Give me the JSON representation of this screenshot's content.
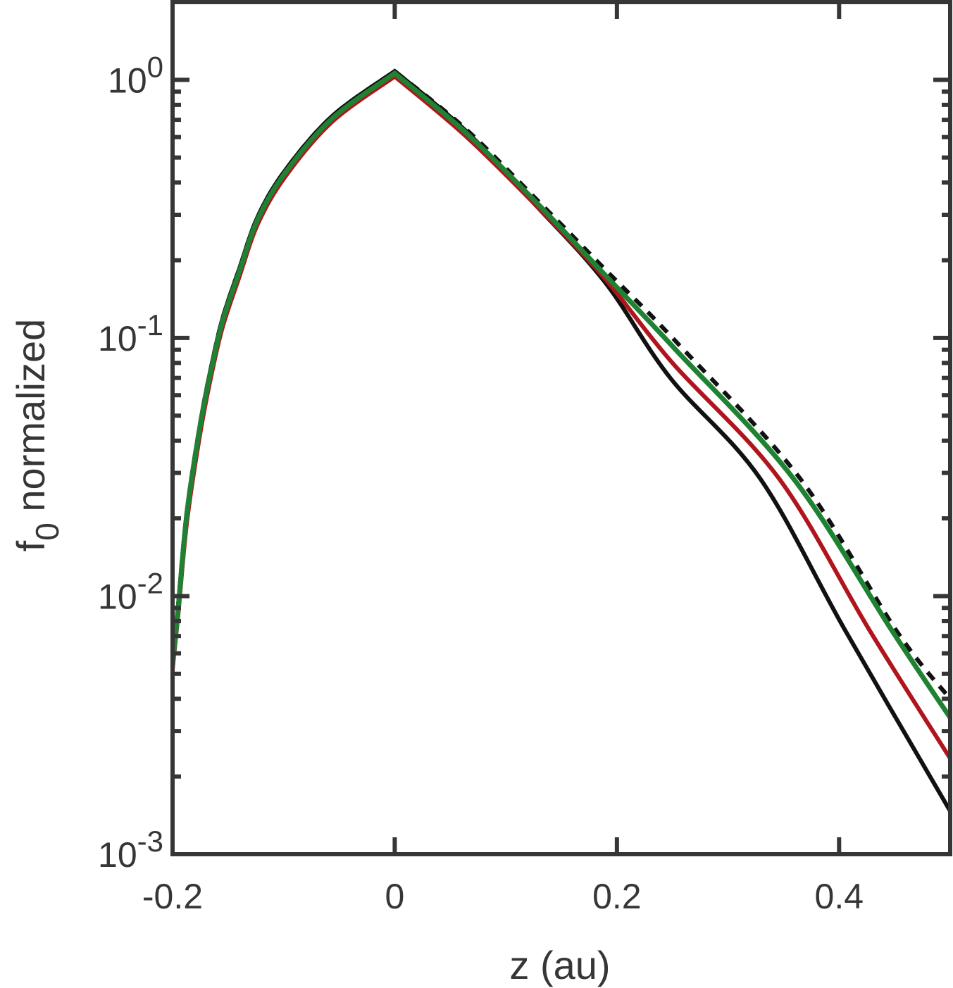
{
  "chart_data": {
    "type": "line",
    "title": "",
    "xlabel": "z (au)",
    "ylabel": "f0 normalized",
    "ylabel_parts": {
      "base": "f",
      "subscript": "0",
      "rest": " normalized"
    },
    "xscale": "linear",
    "yscale": "log",
    "xlim": [
      -0.2,
      0.5
    ],
    "ylim": [
      0.001,
      2
    ],
    "grid": false,
    "legend": null,
    "xticks": [
      -0.2,
      0,
      0.2,
      0.4
    ],
    "xtick_labels": [
      "-0.2",
      "0",
      "0.2",
      "0.4"
    ],
    "yticks": [
      0.001,
      0.01,
      0.1,
      1
    ],
    "ytick_labels": [
      {
        "base": "10",
        "exp": "-3"
      },
      {
        "base": "10",
        "exp": "-2"
      },
      {
        "base": "10",
        "exp": "-1"
      },
      {
        "base": "10",
        "exp": "0"
      }
    ],
    "series": [
      {
        "name": "black-solid",
        "color": "#111111",
        "dash": "none",
        "points": [
          [
            -0.2,
            0.0056
          ],
          [
            -0.195,
            0.0092
          ],
          [
            -0.187,
            0.0215
          ],
          [
            -0.175,
            0.047
          ],
          [
            -0.165,
            0.078
          ],
          [
            -0.155,
            0.119
          ],
          [
            -0.14,
            0.185
          ],
          [
            -0.123,
            0.297
          ],
          [
            -0.098,
            0.45
          ],
          [
            -0.056,
            0.725
          ],
          [
            0,
            1.08
          ],
          [
            0.063,
            0.64
          ],
          [
            0.126,
            0.33
          ],
          [
            0.189,
            0.165
          ],
          [
            0.248,
            0.07
          ],
          [
            0.329,
            0.0285
          ],
          [
            0.406,
            0.0073
          ],
          [
            0.5,
            0.00147
          ]
        ]
      },
      {
        "name": "black-dashed",
        "color": "#111111",
        "dash": "14 12",
        "points": [
          [
            -0.2,
            0.0056
          ],
          [
            -0.195,
            0.0092
          ],
          [
            -0.187,
            0.0215
          ],
          [
            -0.175,
            0.047
          ],
          [
            -0.165,
            0.078
          ],
          [
            -0.155,
            0.119
          ],
          [
            -0.14,
            0.185
          ],
          [
            -0.123,
            0.297
          ],
          [
            -0.098,
            0.45
          ],
          [
            -0.056,
            0.725
          ],
          [
            0,
            1.08
          ],
          [
            0.063,
            0.65
          ],
          [
            0.126,
            0.35
          ],
          [
            0.189,
            0.185
          ],
          [
            0.253,
            0.097
          ],
          [
            0.365,
            0.0285
          ],
          [
            0.452,
            0.0073
          ],
          [
            0.5,
            0.004
          ]
        ]
      },
      {
        "name": "red",
        "color": "#b0151d",
        "dash": "none",
        "points": [
          [
            -0.2,
            0.0052
          ],
          [
            -0.195,
            0.0084
          ],
          [
            -0.187,
            0.0195
          ],
          [
            -0.175,
            0.043
          ],
          [
            -0.165,
            0.072
          ],
          [
            -0.155,
            0.11
          ],
          [
            -0.14,
            0.172
          ],
          [
            -0.123,
            0.278
          ],
          [
            -0.098,
            0.425
          ],
          [
            -0.056,
            0.69
          ],
          [
            0,
            1.03
          ],
          [
            0.063,
            0.61
          ],
          [
            0.126,
            0.33
          ],
          [
            0.189,
            0.17
          ],
          [
            0.25,
            0.08
          ],
          [
            0.346,
            0.0285
          ],
          [
            0.428,
            0.0073
          ],
          [
            0.5,
            0.00235
          ]
        ]
      },
      {
        "name": "green",
        "color": "#1f8233",
        "dash": "none",
        "points": [
          [
            -0.2,
            0.0055
          ],
          [
            -0.195,
            0.0089
          ],
          [
            -0.187,
            0.021
          ],
          [
            -0.175,
            0.046
          ],
          [
            -0.165,
            0.076
          ],
          [
            -0.155,
            0.116
          ],
          [
            -0.14,
            0.18
          ],
          [
            -0.123,
            0.29
          ],
          [
            -0.098,
            0.44
          ],
          [
            -0.056,
            0.71
          ],
          [
            0,
            1.06
          ],
          [
            0.063,
            0.63
          ],
          [
            0.126,
            0.34
          ],
          [
            0.189,
            0.176
          ],
          [
            0.253,
            0.09
          ],
          [
            0.359,
            0.0285
          ],
          [
            0.448,
            0.0073
          ],
          [
            0.5,
            0.00338
          ]
        ]
      }
    ]
  },
  "style": {
    "axis_color": "#363636",
    "background": "#ffffff"
  }
}
